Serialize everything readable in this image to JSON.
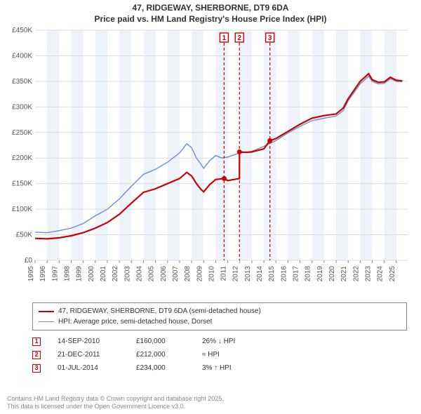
{
  "title_line1": "47, RIDGEWAY, SHERBORNE, DT9 6DA",
  "title_line2": "Price paid vs. HM Land Registry's House Price Index (HPI)",
  "colors": {
    "primary": "#cc0000",
    "secondary": "#6a8fd0",
    "grid": "#dddddd",
    "band": "#eef2f9",
    "text": "#555555",
    "footer": "#888888"
  },
  "chart": {
    "type": "line",
    "x_domain": [
      1995,
      2026
    ],
    "y_domain": [
      0,
      450000
    ],
    "y_ticks": [
      0,
      50000,
      100000,
      150000,
      200000,
      250000,
      300000,
      350000,
      400000,
      450000
    ],
    "y_tick_labels": [
      "£0",
      "£50K",
      "£100K",
      "£150K",
      "£200K",
      "£250K",
      "£300K",
      "£350K",
      "£400K",
      "£450K"
    ],
    "x_ticks": [
      1995,
      1996,
      1997,
      1998,
      1999,
      2000,
      2001,
      2002,
      2003,
      2004,
      2005,
      2006,
      2007,
      2008,
      2009,
      2010,
      2011,
      2012,
      2013,
      2014,
      2015,
      2016,
      2017,
      2018,
      2019,
      2020,
      2021,
      2022,
      2023,
      2024,
      2025
    ],
    "bands": [
      [
        1996,
        1997
      ],
      [
        1998,
        1999
      ],
      [
        2000,
        2001
      ],
      [
        2002,
        2003
      ],
      [
        2004,
        2005
      ],
      [
        2006,
        2007
      ],
      [
        2008,
        2009
      ],
      [
        2010,
        2011
      ],
      [
        2012,
        2013
      ],
      [
        2014,
        2015
      ],
      [
        2016,
        2017
      ],
      [
        2018,
        2019
      ],
      [
        2020,
        2021
      ],
      [
        2022,
        2023
      ],
      [
        2024,
        2025
      ]
    ],
    "secondary_series": [
      [
        1995,
        55000
      ],
      [
        1996,
        54000
      ],
      [
        1997,
        58000
      ],
      [
        1998,
        63000
      ],
      [
        1999,
        72000
      ],
      [
        2000,
        87000
      ],
      [
        2001,
        100000
      ],
      [
        2002,
        120000
      ],
      [
        2003,
        145000
      ],
      [
        2004,
        168000
      ],
      [
        2005,
        178000
      ],
      [
        2006,
        192000
      ],
      [
        2007,
        210000
      ],
      [
        2007.6,
        228000
      ],
      [
        2008,
        220000
      ],
      [
        2008.4,
        200000
      ],
      [
        2008.8,
        187000
      ],
      [
        2009,
        180000
      ],
      [
        2009.5,
        195000
      ],
      [
        2010,
        205000
      ],
      [
        2010.5,
        200000
      ],
      [
        2011,
        202000
      ],
      [
        2011.5,
        206000
      ],
      [
        2012,
        210000
      ],
      [
        2013,
        213000
      ],
      [
        2014,
        223000
      ],
      [
        2015,
        234000
      ],
      [
        2016,
        249000
      ],
      [
        2017,
        262000
      ],
      [
        2018,
        273000
      ],
      [
        2019,
        278000
      ],
      [
        2020,
        282000
      ],
      [
        2020.6,
        293000
      ],
      [
        2021,
        312000
      ],
      [
        2022,
        345000
      ],
      [
        2022.7,
        360000
      ],
      [
        2023,
        350000
      ],
      [
        2023.5,
        345000
      ],
      [
        2024,
        346000
      ],
      [
        2024.5,
        355000
      ],
      [
        2025,
        350000
      ],
      [
        2025.5,
        349000
      ]
    ],
    "primary_series": [
      [
        1995,
        43000
      ],
      [
        1996,
        42000
      ],
      [
        1997,
        44000
      ],
      [
        1998,
        48000
      ],
      [
        1999,
        54000
      ],
      [
        2000,
        63000
      ],
      [
        2001,
        74000
      ],
      [
        2002,
        90000
      ],
      [
        2003,
        112000
      ],
      [
        2004,
        133000
      ],
      [
        2005,
        140000
      ],
      [
        2006,
        150000
      ],
      [
        2007,
        160000
      ],
      [
        2007.6,
        172000
      ],
      [
        2008,
        165000
      ],
      [
        2008.4,
        150000
      ],
      [
        2008.8,
        138000
      ],
      [
        2009,
        134000
      ],
      [
        2009.5,
        148000
      ],
      [
        2010,
        158000
      ],
      [
        2010.7,
        160000
      ],
      [
        2011,
        156000
      ],
      [
        2011.5,
        158000
      ],
      [
        2011.97,
        160000
      ],
      [
        2011.975,
        212000
      ],
      [
        2012.5,
        211000
      ],
      [
        2013,
        212000
      ],
      [
        2013.5,
        215000
      ],
      [
        2014,
        218000
      ],
      [
        2014.5,
        234000
      ],
      [
        2015,
        238000
      ],
      [
        2016,
        252000
      ],
      [
        2017,
        266000
      ],
      [
        2018,
        278000
      ],
      [
        2019,
        283000
      ],
      [
        2020,
        286000
      ],
      [
        2020.6,
        298000
      ],
      [
        2021,
        316000
      ],
      [
        2022,
        350000
      ],
      [
        2022.7,
        365000
      ],
      [
        2023,
        353000
      ],
      [
        2023.5,
        348000
      ],
      [
        2024,
        349000
      ],
      [
        2024.5,
        358000
      ],
      [
        2025,
        352000
      ],
      [
        2025.5,
        351000
      ]
    ],
    "markers": [
      {
        "n": "1",
        "x": 2010.7,
        "price": 160000
      },
      {
        "n": "2",
        "x": 2011.97,
        "price": 212000
      },
      {
        "n": "3",
        "x": 2014.5,
        "price": 234000
      }
    ]
  },
  "legend": {
    "primary": "47, RIDGEWAY, SHERBORNE, DT9 6DA (semi-detached house)",
    "secondary": "HPI: Average price, semi-detached house, Dorset"
  },
  "events": [
    {
      "n": "1",
      "date": "14-SEP-2010",
      "price": "£160,000",
      "delta": "26% ↓ HPI"
    },
    {
      "n": "2",
      "date": "21-DEC-2011",
      "price": "£212,000",
      "delta": "≈ HPI"
    },
    {
      "n": "3",
      "date": "01-JUL-2014",
      "price": "£234,000",
      "delta": "3% ↑ HPI"
    }
  ],
  "footer_line1": "Contains HM Land Registry data © Crown copyright and database right 2025.",
  "footer_line2": "This data is licensed under the Open Government Licence v3.0."
}
